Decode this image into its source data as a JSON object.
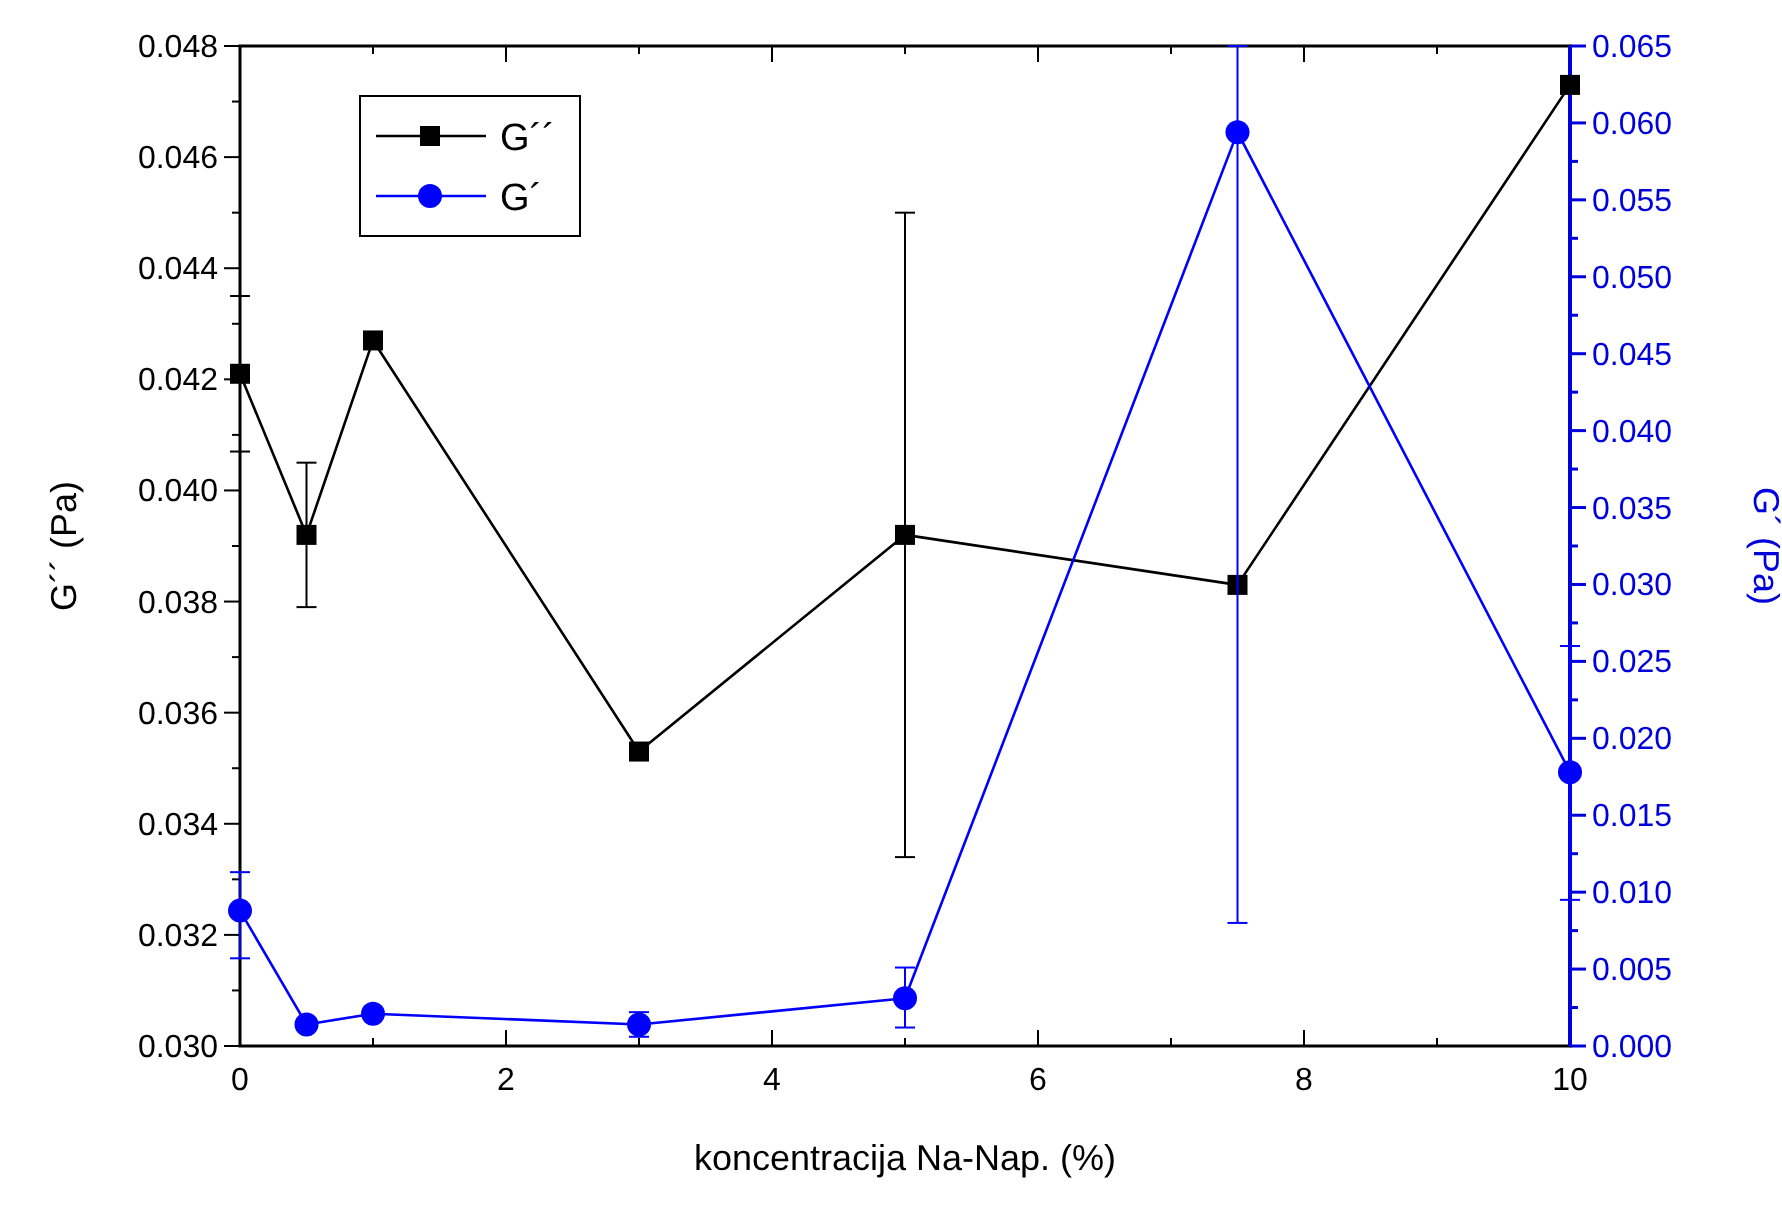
{
  "chart_data": {
    "type": "line",
    "xlabel": "koncentracija Na-Nap. (%)",
    "ylabel": "G´´ (Pa)",
    "y2label": "G´ (Pa)",
    "legend": "top left",
    "line_style": "solid",
    "grid": false,
    "x": [
      0,
      0.5,
      1,
      3,
      5,
      7.5,
      10
    ],
    "xlim": [
      0,
      10
    ],
    "xticks": [
      0,
      {
        "value": 1,
        "label": null
      },
      2,
      {
        "value": 3,
        "label": null
      },
      4,
      {
        "value": 5,
        "label": null
      },
      6,
      {
        "value": 7,
        "label": null
      },
      8,
      {
        "value": 9,
        "label": null
      },
      10
    ],
    "ylim": [
      0.03,
      0.048
    ],
    "yticks": [
      {
        "value": 0.03,
        "label": "0.030"
      },
      {
        "value": 0.031,
        "label": null
      },
      {
        "value": 0.032,
        "label": "0.032"
      },
      {
        "value": 0.033,
        "label": null
      },
      {
        "value": 0.034,
        "label": "0.034"
      },
      {
        "value": 0.035,
        "label": null
      },
      {
        "value": 0.036,
        "label": "0.036"
      },
      {
        "value": 0.037,
        "label": null
      },
      {
        "value": 0.038,
        "label": "0.038"
      },
      {
        "value": 0.039,
        "label": null
      },
      {
        "value": 0.04,
        "label": "0.040"
      },
      {
        "value": 0.041,
        "label": null
      },
      {
        "value": 0.042,
        "label": "0.042"
      },
      {
        "value": 0.043,
        "label": null
      },
      {
        "value": 0.044,
        "label": "0.044"
      },
      {
        "value": 0.045,
        "label": null
      },
      {
        "value": 0.046,
        "label": "0.046"
      },
      {
        "value": 0.047,
        "label": null
      },
      {
        "value": 0.048,
        "label": "0.048"
      }
    ],
    "y2lim": [
      0,
      0.065
    ],
    "y2ticks": [
      {
        "value": 0,
        "label": "0.000"
      },
      {
        "value": 0.0025,
        "label": null
      },
      {
        "value": 0.005,
        "label": "0.005"
      },
      {
        "value": 0.0075,
        "label": null
      },
      {
        "value": 0.01,
        "label": "0.010"
      },
      {
        "value": 0.0125,
        "label": null
      },
      {
        "value": 0.015,
        "label": "0.015"
      },
      {
        "value": 0.0175,
        "label": null
      },
      {
        "value": 0.02,
        "label": "0.020"
      },
      {
        "value": 0.0225,
        "label": null
      },
      {
        "value": 0.025,
        "label": "0.025"
      },
      {
        "value": 0.0275,
        "label": null
      },
      {
        "value": 0.03,
        "label": "0.030"
      },
      {
        "value": 0.0325,
        "label": null
      },
      {
        "value": 0.035,
        "label": "0.035"
      },
      {
        "value": 0.0375,
        "label": null
      },
      {
        "value": 0.04,
        "label": "0.040"
      },
      {
        "value": 0.0425,
        "label": null
      },
      {
        "value": 0.045,
        "label": "0.045"
      },
      {
        "value": 0.0475,
        "label": null
      },
      {
        "value": 0.05,
        "label": "0.050"
      },
      {
        "value": 0.0525,
        "label": null
      },
      {
        "value": 0.055,
        "label": "0.055"
      },
      {
        "value": 0.0575,
        "label": null
      },
      {
        "value": 0.06,
        "label": "0.060"
      },
      {
        "value": 0.0625,
        "label": null
      },
      {
        "value": 0.065,
        "label": "0.065"
      }
    ],
    "series": [
      {
        "name": "G´´",
        "color": "#000000",
        "marker": "square",
        "values": [
          0.0421,
          0.0392,
          0.0427,
          0.0353,
          0.0392,
          0.0383,
          0.0473
        ],
        "errors": [
          [
            0.0407,
            0.0435
          ],
          [
            0.0379,
            0.0405
          ],
          null,
          null,
          [
            0.0334,
            0.045
          ],
          null,
          null
        ]
      },
      {
        "name": "G´",
        "color": "#0000ff",
        "marker": "circle",
        "axis": "y2",
        "values": [
          0.0088,
          0.0014,
          0.0021,
          0.0014,
          0.0031,
          0.0594,
          0.0178
        ],
        "errors": [
          [
            0.0057,
            0.0113
          ],
          null,
          null,
          [
            0.0006,
            0.0022
          ],
          [
            0.0012,
            0.0051
          ],
          [
            0.008,
            0.065
          ],
          [
            0.0095,
            0.026
          ]
        ]
      }
    ]
  }
}
